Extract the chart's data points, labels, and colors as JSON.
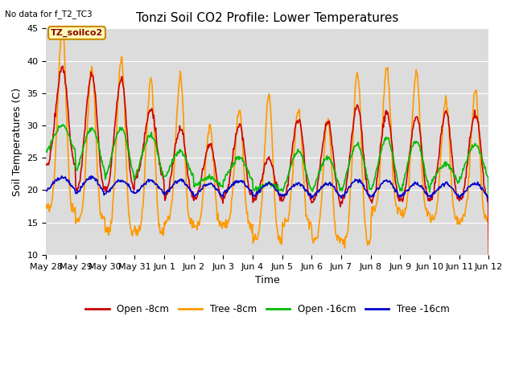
{
  "title": "Tonzi Soil CO2 Profile: Lower Temperatures",
  "no_data_text": "No data for f_T2_TC3",
  "annotation_text": "TZ_soilco2",
  "xlabel": "Time",
  "ylabel": "Soil Temperatures (C)",
  "ylim": [
    10,
    45
  ],
  "yticks": [
    10,
    15,
    20,
    25,
    30,
    35,
    40,
    45
  ],
  "xtick_labels": [
    "May 28",
    "May 29",
    "May 30",
    "May 31",
    "Jun 1",
    "Jun 2",
    "Jun 3",
    "Jun 4",
    "Jun 5",
    "Jun 6",
    "Jun 7",
    "Jun 8",
    "Jun 9",
    "Jun 10",
    "Jun 11",
    "Jun 12"
  ],
  "line_colors": [
    "#cc0000",
    "#ff9900",
    "#00bb00",
    "#0000cc"
  ],
  "line_labels": [
    "Open -8cm",
    "Tree -8cm",
    "Open -16cm",
    "Tree -16cm"
  ],
  "title_fontsize": 11,
  "axis_fontsize": 9,
  "tick_fontsize": 8
}
